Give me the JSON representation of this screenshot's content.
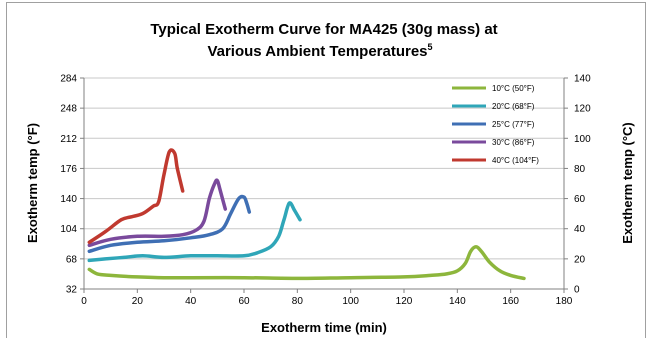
{
  "chart_data": {
    "type": "line",
    "title_line1": "Typical Exotherm Curve for MA425 (30g mass) at",
    "title_line2": "Various Ambient Temperatures",
    "title_superscript": "5",
    "xlabel": "Exotherm time (min)",
    "ylabel_left": "Exotherm temp (°F)",
    "ylabel_right": "Exotherm temp (°C)",
    "xlim": [
      0,
      180
    ],
    "ylim_left": [
      32,
      284
    ],
    "ylim_right": [
      0,
      140
    ],
    "x_ticks": [
      0,
      20,
      40,
      60,
      80,
      100,
      120,
      140,
      160,
      180
    ],
    "y_ticks_left": [
      32,
      68,
      104,
      140,
      176,
      212,
      248,
      284
    ],
    "y_ticks_right": [
      0,
      20,
      40,
      60,
      80,
      100,
      120,
      140
    ],
    "grid": "horizontal",
    "legend_position": "top-right",
    "series": [
      {
        "name": "10°C (50°F)",
        "color": "#8db63c",
        "points": [
          [
            2,
            13
          ],
          [
            5,
            10
          ],
          [
            10,
            9
          ],
          [
            20,
            8
          ],
          [
            30,
            7.5
          ],
          [
            40,
            7.5
          ],
          [
            60,
            7.5
          ],
          [
            80,
            7
          ],
          [
            100,
            7.5
          ],
          [
            120,
            8
          ],
          [
            130,
            9
          ],
          [
            136,
            10
          ],
          [
            140,
            12
          ],
          [
            143,
            17
          ],
          [
            145,
            25
          ],
          [
            147,
            28
          ],
          [
            149,
            25
          ],
          [
            152,
            18
          ],
          [
            156,
            12
          ],
          [
            160,
            9
          ],
          [
            165,
            7
          ]
        ]
      },
      {
        "name": "20°C (68°F)",
        "color": "#2fa6b8",
        "points": [
          [
            2,
            19
          ],
          [
            8,
            20
          ],
          [
            15,
            21
          ],
          [
            22,
            22
          ],
          [
            30,
            21
          ],
          [
            40,
            22
          ],
          [
            50,
            22
          ],
          [
            60,
            22
          ],
          [
            65,
            24
          ],
          [
            70,
            28
          ],
          [
            73,
            35
          ],
          [
            75,
            46
          ],
          [
            77,
            57
          ],
          [
            79,
            52
          ],
          [
            81,
            46
          ]
        ]
      },
      {
        "name": "25°C (77°F)",
        "color": "#3f6fb4",
        "points": [
          [
            2,
            25
          ],
          [
            10,
            29
          ],
          [
            20,
            31
          ],
          [
            30,
            32
          ],
          [
            40,
            34
          ],
          [
            47,
            36
          ],
          [
            52,
            40
          ],
          [
            55,
            50
          ],
          [
            58,
            60
          ],
          [
            60,
            61
          ],
          [
            61,
            57
          ],
          [
            62,
            51
          ]
        ]
      },
      {
        "name": "30°C (86°F)",
        "color": "#7a4a9c",
        "points": [
          [
            2,
            29
          ],
          [
            10,
            33
          ],
          [
            20,
            35
          ],
          [
            30,
            35
          ],
          [
            37,
            36
          ],
          [
            42,
            39
          ],
          [
            45,
            45
          ],
          [
            47,
            60
          ],
          [
            49,
            70
          ],
          [
            50,
            72
          ],
          [
            51,
            66
          ],
          [
            53,
            53
          ]
        ]
      },
      {
        "name": "40°C (104°F)",
        "color": "#c0392f",
        "points": [
          [
            2,
            31
          ],
          [
            8,
            38
          ],
          [
            14,
            46
          ],
          [
            18,
            48
          ],
          [
            22,
            50
          ],
          [
            26,
            55
          ],
          [
            28,
            58
          ],
          [
            30,
            76
          ],
          [
            32,
            91
          ],
          [
            34,
            90
          ],
          [
            35,
            80
          ],
          [
            37,
            65
          ]
        ]
      }
    ]
  }
}
